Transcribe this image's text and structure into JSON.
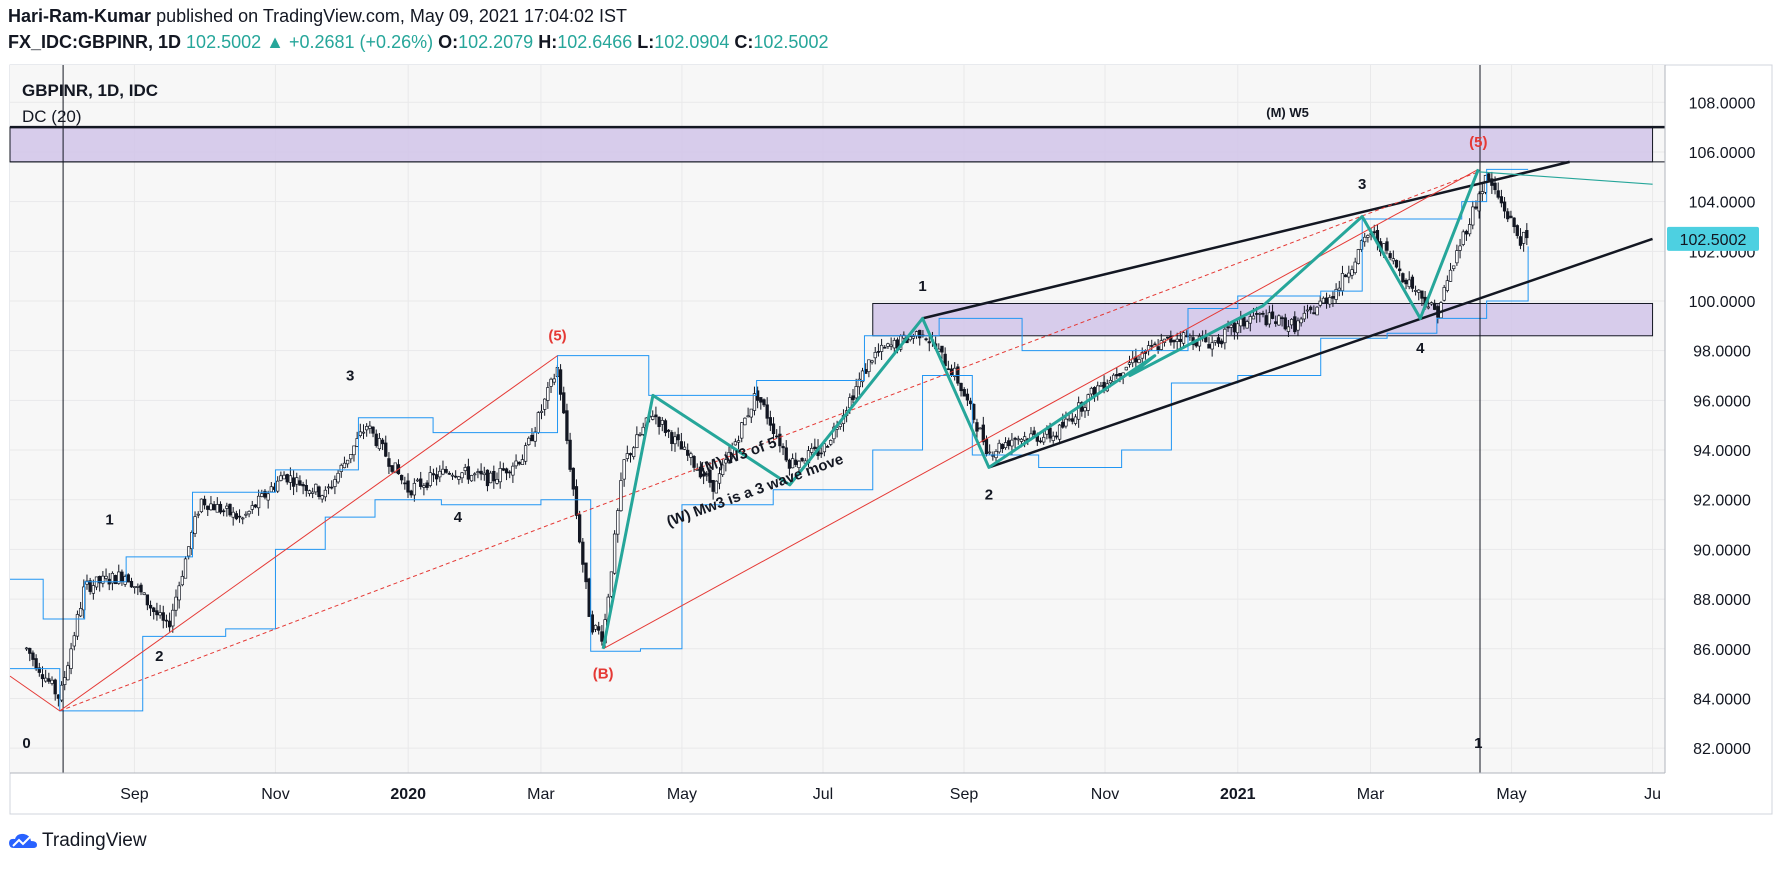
{
  "header": {
    "author": "Hari-Ram-Kumar",
    "published_text": "published on TradingView.com, May 09, 2021 17:04:02 IST",
    "symbol": "FX_IDC:GBPINR, 1D",
    "last": "102.5002",
    "change": "+0.2681 (+0.26%)",
    "o_label": "O:",
    "o": "102.2079",
    "h_label": "H:",
    "h": "102.6466",
    "l_label": "L:",
    "l": "102.0904",
    "c_label": "C:",
    "c": "102.5002"
  },
  "legend": {
    "title": "GBPINR, 1D, IDC",
    "indicator": "DC (20)"
  },
  "footer": {
    "brand": "TradingView"
  },
  "colors": {
    "up": "#26a69a",
    "candle": "#131722",
    "donchian": "#2196f3",
    "wave": "#26a69a",
    "trend": "#131722",
    "redline": "#e53935",
    "zone": "#d1c4e9",
    "price_tag": "#4dd0e1"
  },
  "chart_data": {
    "type": "candlestick",
    "instrument": "GBPINR",
    "timeframe": "1D",
    "ylim": [
      81.0,
      109.5
    ],
    "yticks": [
      "108.0000",
      "106.0000",
      "104.0000",
      "102.0000",
      "100.0000",
      "98.0000",
      "96.0000",
      "94.0000",
      "92.0000",
      "90.0000",
      "88.0000",
      "86.0000",
      "84.0000",
      "82.0000"
    ],
    "ytick_values": [
      108,
      106,
      104,
      102,
      100,
      98,
      96,
      94,
      92,
      90,
      88,
      86,
      84,
      82
    ],
    "xticks": [
      {
        "label": "Sep",
        "t": 2019.67,
        "bold": false
      },
      {
        "label": "Nov",
        "t": 2019.84,
        "bold": false
      },
      {
        "label": "2020",
        "t": 2020.0,
        "bold": true
      },
      {
        "label": "Mar",
        "t": 2020.16,
        "bold": false
      },
      {
        "label": "May",
        "t": 2020.33,
        "bold": false
      },
      {
        "label": "Jul",
        "t": 2020.5,
        "bold": false
      },
      {
        "label": "Sep",
        "t": 2020.67,
        "bold": false
      },
      {
        "label": "Nov",
        "t": 2020.84,
        "bold": false
      },
      {
        "label": "2021",
        "t": 2021.0,
        "bold": true
      },
      {
        "label": "Mar",
        "t": 2021.16,
        "bold": false
      },
      {
        "label": "May",
        "t": 2021.33,
        "bold": false
      },
      {
        "label": "Ju",
        "t": 2021.5,
        "bold": false
      }
    ],
    "last_price": 102.5002,
    "last_price_label": "102.5002",
    "path": [
      [
        2019.54,
        86.0
      ],
      [
        2019.58,
        84.0
      ],
      [
        2019.61,
        88.5
      ],
      [
        2019.66,
        89.0
      ],
      [
        2019.71,
        86.8
      ],
      [
        2019.75,
        92.0
      ],
      [
        2019.8,
        91.2
      ],
      [
        2019.85,
        93.0
      ],
      [
        2019.9,
        92.2
      ],
      [
        2019.95,
        95.0
      ],
      [
        2020.0,
        92.4
      ],
      [
        2020.05,
        93.2
      ],
      [
        2020.1,
        92.8
      ],
      [
        2020.14,
        93.8
      ],
      [
        2020.18,
        97.3
      ],
      [
        2020.22,
        87.0
      ],
      [
        2020.235,
        86.5
      ],
      [
        2020.26,
        93.5
      ],
      [
        2020.295,
        95.5
      ],
      [
        2020.33,
        94.0
      ],
      [
        2020.37,
        92.5
      ],
      [
        2020.42,
        96.3
      ],
      [
        2020.46,
        93.5
      ],
      [
        2020.5,
        94.0
      ],
      [
        2020.56,
        97.8
      ],
      [
        2020.62,
        98.8
      ],
      [
        2020.66,
        97.0
      ],
      [
        2020.7,
        93.9
      ],
      [
        2020.73,
        94.5
      ],
      [
        2020.78,
        94.6
      ],
      [
        2020.83,
        96.5
      ],
      [
        2020.88,
        97.8
      ],
      [
        2020.93,
        98.6
      ],
      [
        2020.97,
        98.3
      ],
      [
        2021.02,
        99.4
      ],
      [
        2021.07,
        99.0
      ],
      [
        2021.12,
        100.5
      ],
      [
        2021.16,
        102.8
      ],
      [
        2021.2,
        101.0
      ],
      [
        2021.24,
        99.5
      ],
      [
        2021.27,
        102.5
      ],
      [
        2021.3,
        105.0
      ],
      [
        2021.32,
        103.8
      ],
      [
        2021.34,
        102.5
      ],
      [
        2021.35,
        102.5
      ]
    ],
    "donchian_upper": [
      [
        2019.52,
        88.8
      ],
      [
        2019.56,
        87.2
      ],
      [
        2019.61,
        88.7
      ],
      [
        2019.66,
        89.7
      ],
      [
        2019.74,
        92.3
      ],
      [
        2019.84,
        93.2
      ],
      [
        2019.94,
        95.3
      ],
      [
        2020.03,
        94.7
      ],
      [
        2020.18,
        97.8
      ],
      [
        2020.29,
        96.2
      ],
      [
        2020.42,
        96.8
      ],
      [
        2020.55,
        98.6
      ],
      [
        2020.64,
        99.3
      ],
      [
        2020.74,
        98.0
      ],
      [
        2020.86,
        98.0
      ],
      [
        2020.94,
        99.7
      ],
      [
        2021.0,
        100.2
      ],
      [
        2021.1,
        100.4
      ],
      [
        2021.15,
        103.3
      ],
      [
        2021.22,
        103.3
      ],
      [
        2021.27,
        104.0
      ],
      [
        2021.3,
        105.3
      ],
      [
        2021.35,
        105.3
      ]
    ],
    "donchian_lower": [
      [
        2019.52,
        85.2
      ],
      [
        2019.58,
        83.5
      ],
      [
        2019.62,
        83.5
      ],
      [
        2019.68,
        86.5
      ],
      [
        2019.78,
        86.8
      ],
      [
        2019.84,
        90.0
      ],
      [
        2019.9,
        91.3
      ],
      [
        2019.96,
        92.0
      ],
      [
        2020.04,
        91.8
      ],
      [
        2020.16,
        92.0
      ],
      [
        2020.22,
        85.9
      ],
      [
        2020.28,
        86.0
      ],
      [
        2020.33,
        91.8
      ],
      [
        2020.44,
        92.4
      ],
      [
        2020.56,
        94.0
      ],
      [
        2020.62,
        97.0
      ],
      [
        2020.68,
        93.8
      ],
      [
        2020.76,
        93.3
      ],
      [
        2020.86,
        94.0
      ],
      [
        2020.92,
        96.7
      ],
      [
        2021.0,
        97.0
      ],
      [
        2021.1,
        98.5
      ],
      [
        2021.18,
        98.7
      ],
      [
        2021.24,
        99.3
      ],
      [
        2021.3,
        100.0
      ],
      [
        2021.35,
        102.2
      ]
    ],
    "wave_path": [
      [
        2020.235,
        86.0
      ],
      [
        2020.295,
        96.2
      ],
      [
        2020.46,
        92.6
      ],
      [
        2020.62,
        99.3
      ],
      [
        2020.7,
        93.3
      ],
      [
        2020.9,
        97.8
      ],
      [
        2020.87,
        97.0
      ],
      [
        2021.03,
        99.8
      ],
      [
        2021.15,
        103.4
      ],
      [
        2021.22,
        99.3
      ],
      [
        2021.29,
        105.3
      ]
    ],
    "zones": [
      {
        "t1": 2019.52,
        "t2": 2021.5,
        "y1": 105.6,
        "y2": 107.0
      },
      {
        "t1": 2020.56,
        "t2": 2021.5,
        "y1": 98.6,
        "y2": 99.9
      }
    ],
    "hlines": [
      {
        "y": 107.0
      },
      {
        "y": 105.6
      }
    ],
    "vlines": [
      {
        "t": 2019.584
      },
      {
        "t": 2021.292
      }
    ],
    "trendlines": [
      {
        "t1": 2020.62,
        "y1": 99.3,
        "t2": 2021.4,
        "y2": 105.6,
        "color": "trend",
        "w": 2.5
      },
      {
        "t1": 2020.7,
        "y1": 93.3,
        "t2": 2021.5,
        "y2": 102.5,
        "color": "trend",
        "w": 2.5
      },
      {
        "t1": 2021.29,
        "y1": 105.2,
        "t2": 2021.5,
        "y2": 104.7,
        "color": "wave",
        "w": 1.2
      },
      {
        "t1": 2019.58,
        "y1": 83.5,
        "t2": 2020.18,
        "y2": 97.8,
        "color": "redline",
        "w": 1
      },
      {
        "t1": 2020.235,
        "y1": 86.0,
        "t2": 2021.29,
        "y2": 105.3,
        "color": "redline",
        "w": 1
      },
      {
        "t1": 2019.58,
        "y1": 83.5,
        "t2": 2021.29,
        "y2": 105.2,
        "color": "redline",
        "w": 1,
        "dash": true
      },
      {
        "t1": 2019.52,
        "y1": 84.9,
        "t2": 2019.58,
        "y2": 83.5,
        "color": "redline",
        "w": 1
      }
    ],
    "annotations": [
      {
        "text": "0",
        "t": 2019.54,
        "y": 82.0,
        "color": "dark"
      },
      {
        "text": "1",
        "t": 2019.64,
        "y": 91.0,
        "color": "dark"
      },
      {
        "text": "2",
        "t": 2019.7,
        "y": 85.5,
        "color": "dark"
      },
      {
        "text": "3",
        "t": 2019.93,
        "y": 96.8,
        "color": "dark"
      },
      {
        "text": "4",
        "t": 2020.06,
        "y": 91.1,
        "color": "dark"
      },
      {
        "text": "(5)",
        "t": 2020.18,
        "y": 98.4,
        "color": "red"
      },
      {
        "text": "(B)",
        "t": 2020.235,
        "y": 84.8,
        "color": "red"
      },
      {
        "text": "1",
        "t": 2020.62,
        "y": 100.4,
        "color": "dark"
      },
      {
        "text": "2",
        "t": 2020.7,
        "y": 92.0,
        "color": "dark"
      },
      {
        "text": "3",
        "t": 2021.15,
        "y": 104.5,
        "color": "dark"
      },
      {
        "text": "4",
        "t": 2021.22,
        "y": 97.9,
        "color": "dark"
      },
      {
        "text": "(5)",
        "t": 2021.29,
        "y": 106.2,
        "color": "red"
      },
      {
        "text": "(M) W5",
        "t": 2021.06,
        "y": 107.4,
        "color": "dark",
        "small": true
      },
      {
        "text": "1",
        "t": 2021.29,
        "y": 82.0,
        "color": "dark"
      }
    ],
    "rotated_text": [
      {
        "text": "(M) W3 of 5",
        "t": 2020.4,
        "y": 93.6,
        "angle": -20
      },
      {
        "text": "(W) Mw3 is a 3 wave move",
        "t": 2020.42,
        "y": 92.2,
        "angle": -20
      }
    ]
  }
}
